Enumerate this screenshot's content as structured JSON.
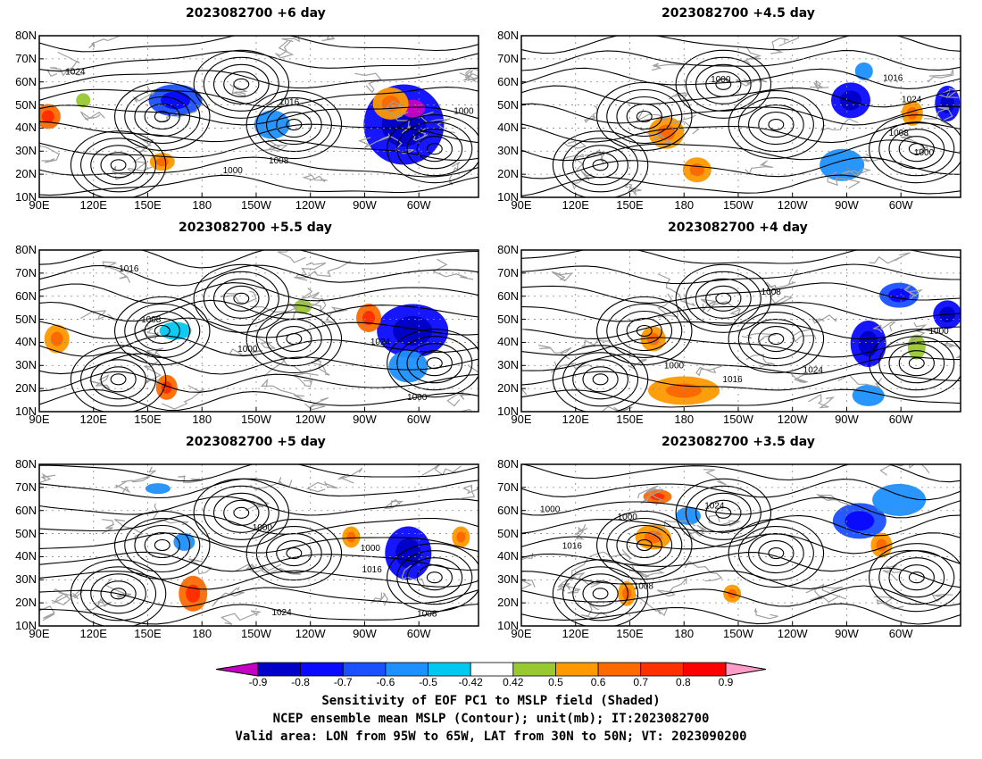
{
  "panels": [
    {
      "title": "2023082700  +6 day"
    },
    {
      "title": "2023082700  +4.5  day"
    },
    {
      "title": "2023082700  +5.5  day"
    },
    {
      "title": "2023082700  +4  day"
    },
    {
      "title": "2023082700  +5  day"
    },
    {
      "title": "2023082700  +3.5  day"
    }
  ],
  "axes": {
    "lat_labels": [
      "80N",
      "70N",
      "60N",
      "50N",
      "40N",
      "30N",
      "20N",
      "10N"
    ],
    "lon_labels": [
      "90E",
      "120E",
      "150E",
      "180",
      "150W",
      "120W",
      "90W",
      "60W"
    ]
  },
  "contour_labels": [
    "1000",
    "1008",
    "1016",
    "1024"
  ],
  "colorbar": {
    "labels": [
      "-0.9",
      "-0.8",
      "-0.7",
      "-0.6",
      "-0.5",
      "-0.42",
      "0.42",
      "0.5",
      "0.6",
      "0.7",
      "0.8",
      "0.9"
    ],
    "colors": [
      "#c400c4",
      "#0000c8",
      "#0a0aff",
      "#1a50ff",
      "#1e90ff",
      "#00c8f0",
      "#ffffff",
      "#98c832",
      "#ff9900",
      "#ff6a00",
      "#ff3000",
      "#ff0000",
      "#ff9cc8"
    ]
  },
  "caption": {
    "line1": "Sensitivity of EOF PC1 to MSLP field (Shaded)",
    "line2": "NCEP ensemble mean MSLP (Contour); unit(mb); IT:2023082700",
    "line3": "Valid area: LON from 95W to 65W, LAT from 30N to 50N; VT: 2023090200"
  }
}
